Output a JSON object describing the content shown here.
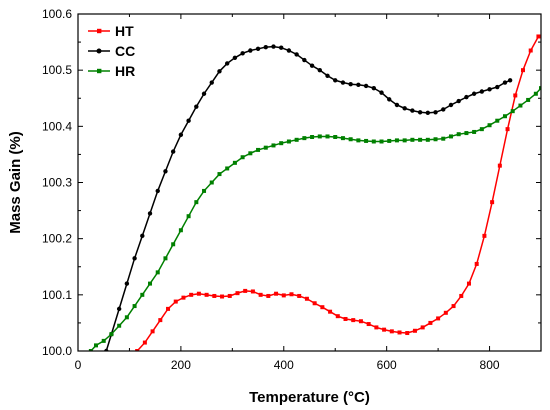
{
  "chart_data": {
    "type": "line",
    "title": "",
    "xlabel": "Temperature (°C)",
    "ylabel": "Mass Gain (%)",
    "xlim": [
      0,
      900
    ],
    "ylim": [
      100.0,
      100.6
    ],
    "x_ticks": [
      "0",
      "200",
      "400",
      "600",
      "800"
    ],
    "y_ticks": [
      "100.0",
      "100.1",
      "100.2",
      "100.3",
      "100.4",
      "100.5",
      "100.6"
    ],
    "legend_position": "top-left",
    "grid": false,
    "series": [
      {
        "name": "HT",
        "color": "#ff0000",
        "marker": "square",
        "points": [
          [
            115,
            100.0
          ],
          [
            130,
            100.015
          ],
          [
            145,
            100.035
          ],
          [
            160,
            100.055
          ],
          [
            175,
            100.075
          ],
          [
            190,
            100.088
          ],
          [
            205,
            100.095
          ],
          [
            220,
            100.1
          ],
          [
            235,
            100.102
          ],
          [
            250,
            100.1
          ],
          [
            265,
            100.098
          ],
          [
            280,
            100.097
          ],
          [
            295,
            100.098
          ],
          [
            310,
            100.103
          ],
          [
            325,
            100.107
          ],
          [
            340,
            100.106
          ],
          [
            355,
            100.1
          ],
          [
            370,
            100.098
          ],
          [
            385,
            100.102
          ],
          [
            400,
            100.099
          ],
          [
            415,
            100.101
          ],
          [
            430,
            100.098
          ],
          [
            445,
            100.093
          ],
          [
            460,
            100.085
          ],
          [
            475,
            100.078
          ],
          [
            490,
            100.07
          ],
          [
            505,
            100.062
          ],
          [
            520,
            100.057
          ],
          [
            535,
            100.055
          ],
          [
            550,
            100.053
          ],
          [
            565,
            100.048
          ],
          [
            580,
            100.042
          ],
          [
            595,
            100.038
          ],
          [
            610,
            100.035
          ],
          [
            625,
            100.033
          ],
          [
            640,
            100.032
          ],
          [
            655,
            100.036
          ],
          [
            670,
            100.042
          ],
          [
            685,
            100.05
          ],
          [
            700,
            100.058
          ],
          [
            715,
            100.068
          ],
          [
            730,
            100.08
          ],
          [
            745,
            100.098
          ],
          [
            760,
            100.12
          ],
          [
            775,
            100.155
          ],
          [
            790,
            100.205
          ],
          [
            805,
            100.265
          ],
          [
            820,
            100.33
          ],
          [
            835,
            100.395
          ],
          [
            850,
            100.455
          ],
          [
            865,
            100.5
          ],
          [
            880,
            100.535
          ],
          [
            895,
            100.56
          ]
        ]
      },
      {
        "name": "CC",
        "color": "#000000",
        "marker": "circle",
        "points": [
          [
            55,
            100.0
          ],
          [
            65,
            100.03
          ],
          [
            80,
            100.075
          ],
          [
            95,
            100.12
          ],
          [
            110,
            100.165
          ],
          [
            125,
            100.205
          ],
          [
            140,
            100.245
          ],
          [
            155,
            100.285
          ],
          [
            170,
            100.32
          ],
          [
            185,
            100.355
          ],
          [
            200,
            100.385
          ],
          [
            215,
            100.41
          ],
          [
            230,
            100.435
          ],
          [
            245,
            100.458
          ],
          [
            260,
            100.478
          ],
          [
            275,
            100.498
          ],
          [
            290,
            100.512
          ],
          [
            305,
            100.522
          ],
          [
            320,
            100.53
          ],
          [
            335,
            100.535
          ],
          [
            350,
            100.538
          ],
          [
            365,
            100.541
          ],
          [
            380,
            100.542
          ],
          [
            395,
            100.54
          ],
          [
            410,
            100.535
          ],
          [
            425,
            100.528
          ],
          [
            440,
            100.518
          ],
          [
            455,
            100.508
          ],
          [
            470,
            100.5
          ],
          [
            485,
            100.49
          ],
          [
            500,
            100.482
          ],
          [
            515,
            100.478
          ],
          [
            530,
            100.475
          ],
          [
            545,
            100.474
          ],
          [
            560,
            100.472
          ],
          [
            575,
            100.468
          ],
          [
            590,
            100.46
          ],
          [
            605,
            100.448
          ],
          [
            620,
            100.438
          ],
          [
            635,
            100.432
          ],
          [
            650,
            100.428
          ],
          [
            665,
            100.425
          ],
          [
            680,
            100.424
          ],
          [
            695,
            100.425
          ],
          [
            710,
            100.43
          ],
          [
            725,
            100.438
          ],
          [
            740,
            100.445
          ],
          [
            755,
            100.452
          ],
          [
            770,
            100.458
          ],
          [
            785,
            100.462
          ],
          [
            800,
            100.466
          ],
          [
            815,
            100.47
          ],
          [
            830,
            100.478
          ],
          [
            840,
            100.482
          ]
        ]
      },
      {
        "name": "HR",
        "color": "#008000",
        "marker": "square",
        "points": [
          [
            25,
            100.0
          ],
          [
            35,
            100.01
          ],
          [
            50,
            100.018
          ],
          [
            65,
            100.03
          ],
          [
            80,
            100.045
          ],
          [
            95,
            100.06
          ],
          [
            110,
            100.08
          ],
          [
            125,
            100.1
          ],
          [
            140,
            100.12
          ],
          [
            155,
            100.14
          ],
          [
            170,
            100.165
          ],
          [
            185,
            100.19
          ],
          [
            200,
            100.215
          ],
          [
            215,
            100.24
          ],
          [
            230,
            100.265
          ],
          [
            245,
            100.285
          ],
          [
            260,
            100.3
          ],
          [
            275,
            100.315
          ],
          [
            290,
            100.325
          ],
          [
            305,
            100.335
          ],
          [
            320,
            100.345
          ],
          [
            335,
            100.352
          ],
          [
            350,
            100.358
          ],
          [
            365,
            100.362
          ],
          [
            380,
            100.366
          ],
          [
            395,
            100.37
          ],
          [
            410,
            100.373
          ],
          [
            425,
            100.376
          ],
          [
            440,
            100.379
          ],
          [
            455,
            100.381
          ],
          [
            470,
            100.382
          ],
          [
            485,
            100.382
          ],
          [
            500,
            100.381
          ],
          [
            515,
            100.379
          ],
          [
            530,
            100.377
          ],
          [
            545,
            100.375
          ],
          [
            560,
            100.374
          ],
          [
            575,
            100.373
          ],
          [
            590,
            100.373
          ],
          [
            605,
            100.374
          ],
          [
            620,
            100.375
          ],
          [
            635,
            100.375
          ],
          [
            650,
            100.376
          ],
          [
            665,
            100.376
          ],
          [
            680,
            100.376
          ],
          [
            695,
            100.377
          ],
          [
            710,
            100.378
          ],
          [
            725,
            100.382
          ],
          [
            740,
            100.386
          ],
          [
            755,
            100.388
          ],
          [
            770,
            100.39
          ],
          [
            785,
            100.395
          ],
          [
            800,
            100.402
          ],
          [
            815,
            100.41
          ],
          [
            830,
            100.418
          ],
          [
            845,
            100.427
          ],
          [
            860,
            100.437
          ],
          [
            875,
            100.447
          ],
          [
            890,
            100.458
          ],
          [
            900,
            100.468
          ]
        ]
      }
    ]
  }
}
